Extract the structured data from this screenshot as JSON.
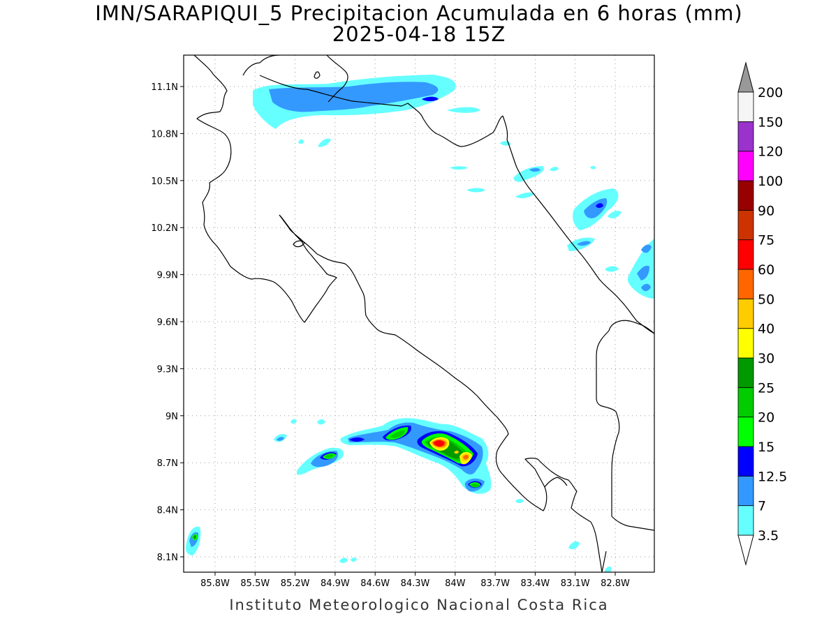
{
  "title": {
    "line1": "IMN/SARAPIQUI_5 Precipitacion Acumulada en 6 horas (mm)",
    "line2": "2025-04-18 15Z"
  },
  "footer": "Instituto Meteorologico Nacional Costa Rica",
  "map": {
    "lat_range": [
      8.0,
      11.3
    ],
    "lon_range": [
      -86.05,
      -83.05
    ],
    "x_ticks": [
      "85.8W",
      "85.5W",
      "85.2W",
      "84.9W",
      "84.6W",
      "84.3W",
      "84W",
      "83.7W",
      "83.4W",
      "83.1W",
      "82.8W"
    ],
    "y_ticks": [
      "11.1N",
      "10.8N",
      "10.5N",
      "10.2N",
      "9.9N",
      "9.6N",
      "9.3N",
      "9N",
      "8.7N",
      "8.4N",
      "8.1N"
    ],
    "gridlines": "dotted"
  },
  "colorbar": {
    "labels": [
      "3.5",
      "7",
      "12.5",
      "15",
      "20",
      "25",
      "30",
      "40",
      "50",
      "60",
      "75",
      "90",
      "100",
      "120",
      "150",
      "200"
    ],
    "colors": [
      "#66ffff",
      "#3399ff",
      "#0000ff",
      "#00ff00",
      "#00cc00",
      "#009900",
      "#ffff00",
      "#ffcc00",
      "#ff6600",
      "#ff0000",
      "#cc3300",
      "#990000",
      "#ff00ff",
      "#9933cc",
      "#f5f5f5"
    ],
    "over_color": "#999999",
    "under_color": "#ffffff"
  }
}
